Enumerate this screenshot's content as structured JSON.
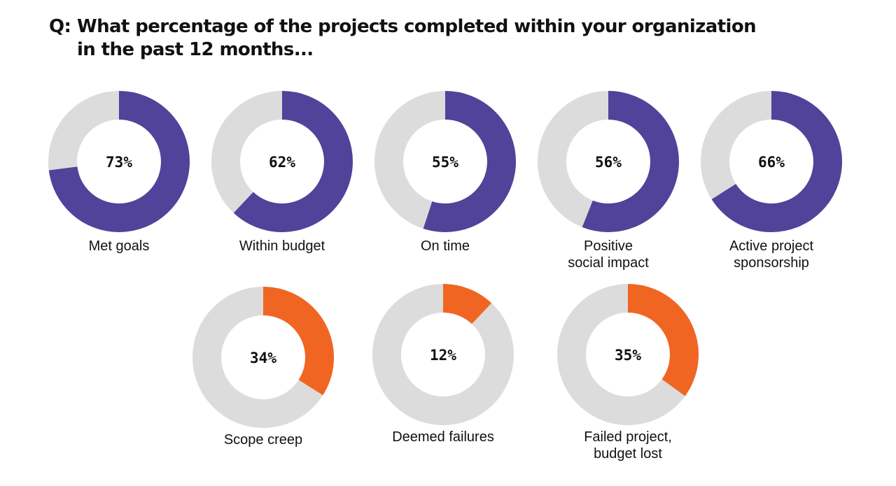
{
  "title": {
    "prefix": "Q:",
    "line1": "What percentage of the projects completed within your organization",
    "line2": "in the past 12 months..."
  },
  "colors": {
    "positive": "#51429a",
    "negative": "#f16522",
    "track": "#dcdcdc",
    "text": "#111111"
  },
  "chart_data": {
    "type": "pie",
    "subtype": "donut",
    "unit": "%",
    "items": [
      {
        "label_lines": [
          "Met goals"
        ],
        "value": 73,
        "value_label": "73%",
        "color": "#51429a"
      },
      {
        "label_lines": [
          "Within budget"
        ],
        "value": 62,
        "value_label": "62%",
        "color": "#51429a"
      },
      {
        "label_lines": [
          "On time"
        ],
        "value": 55,
        "value_label": "55%",
        "color": "#51429a"
      },
      {
        "label_lines": [
          "Positive",
          "social impact"
        ],
        "value": 56,
        "value_label": "56%",
        "color": "#51429a"
      },
      {
        "label_lines": [
          "Active project",
          "sponsorship"
        ],
        "value": 66,
        "value_label": "66%",
        "color": "#51429a"
      },
      {
        "label_lines": [
          "Scope creep"
        ],
        "value": 34,
        "value_label": "34%",
        "color": "#f16522"
      },
      {
        "label_lines": [
          "Deemed failures"
        ],
        "value": 12,
        "value_label": "12%",
        "color": "#f16522"
      },
      {
        "label_lines": [
          "Failed project,",
          "budget lost"
        ],
        "value": 35,
        "value_label": "35%",
        "color": "#f16522"
      }
    ]
  }
}
